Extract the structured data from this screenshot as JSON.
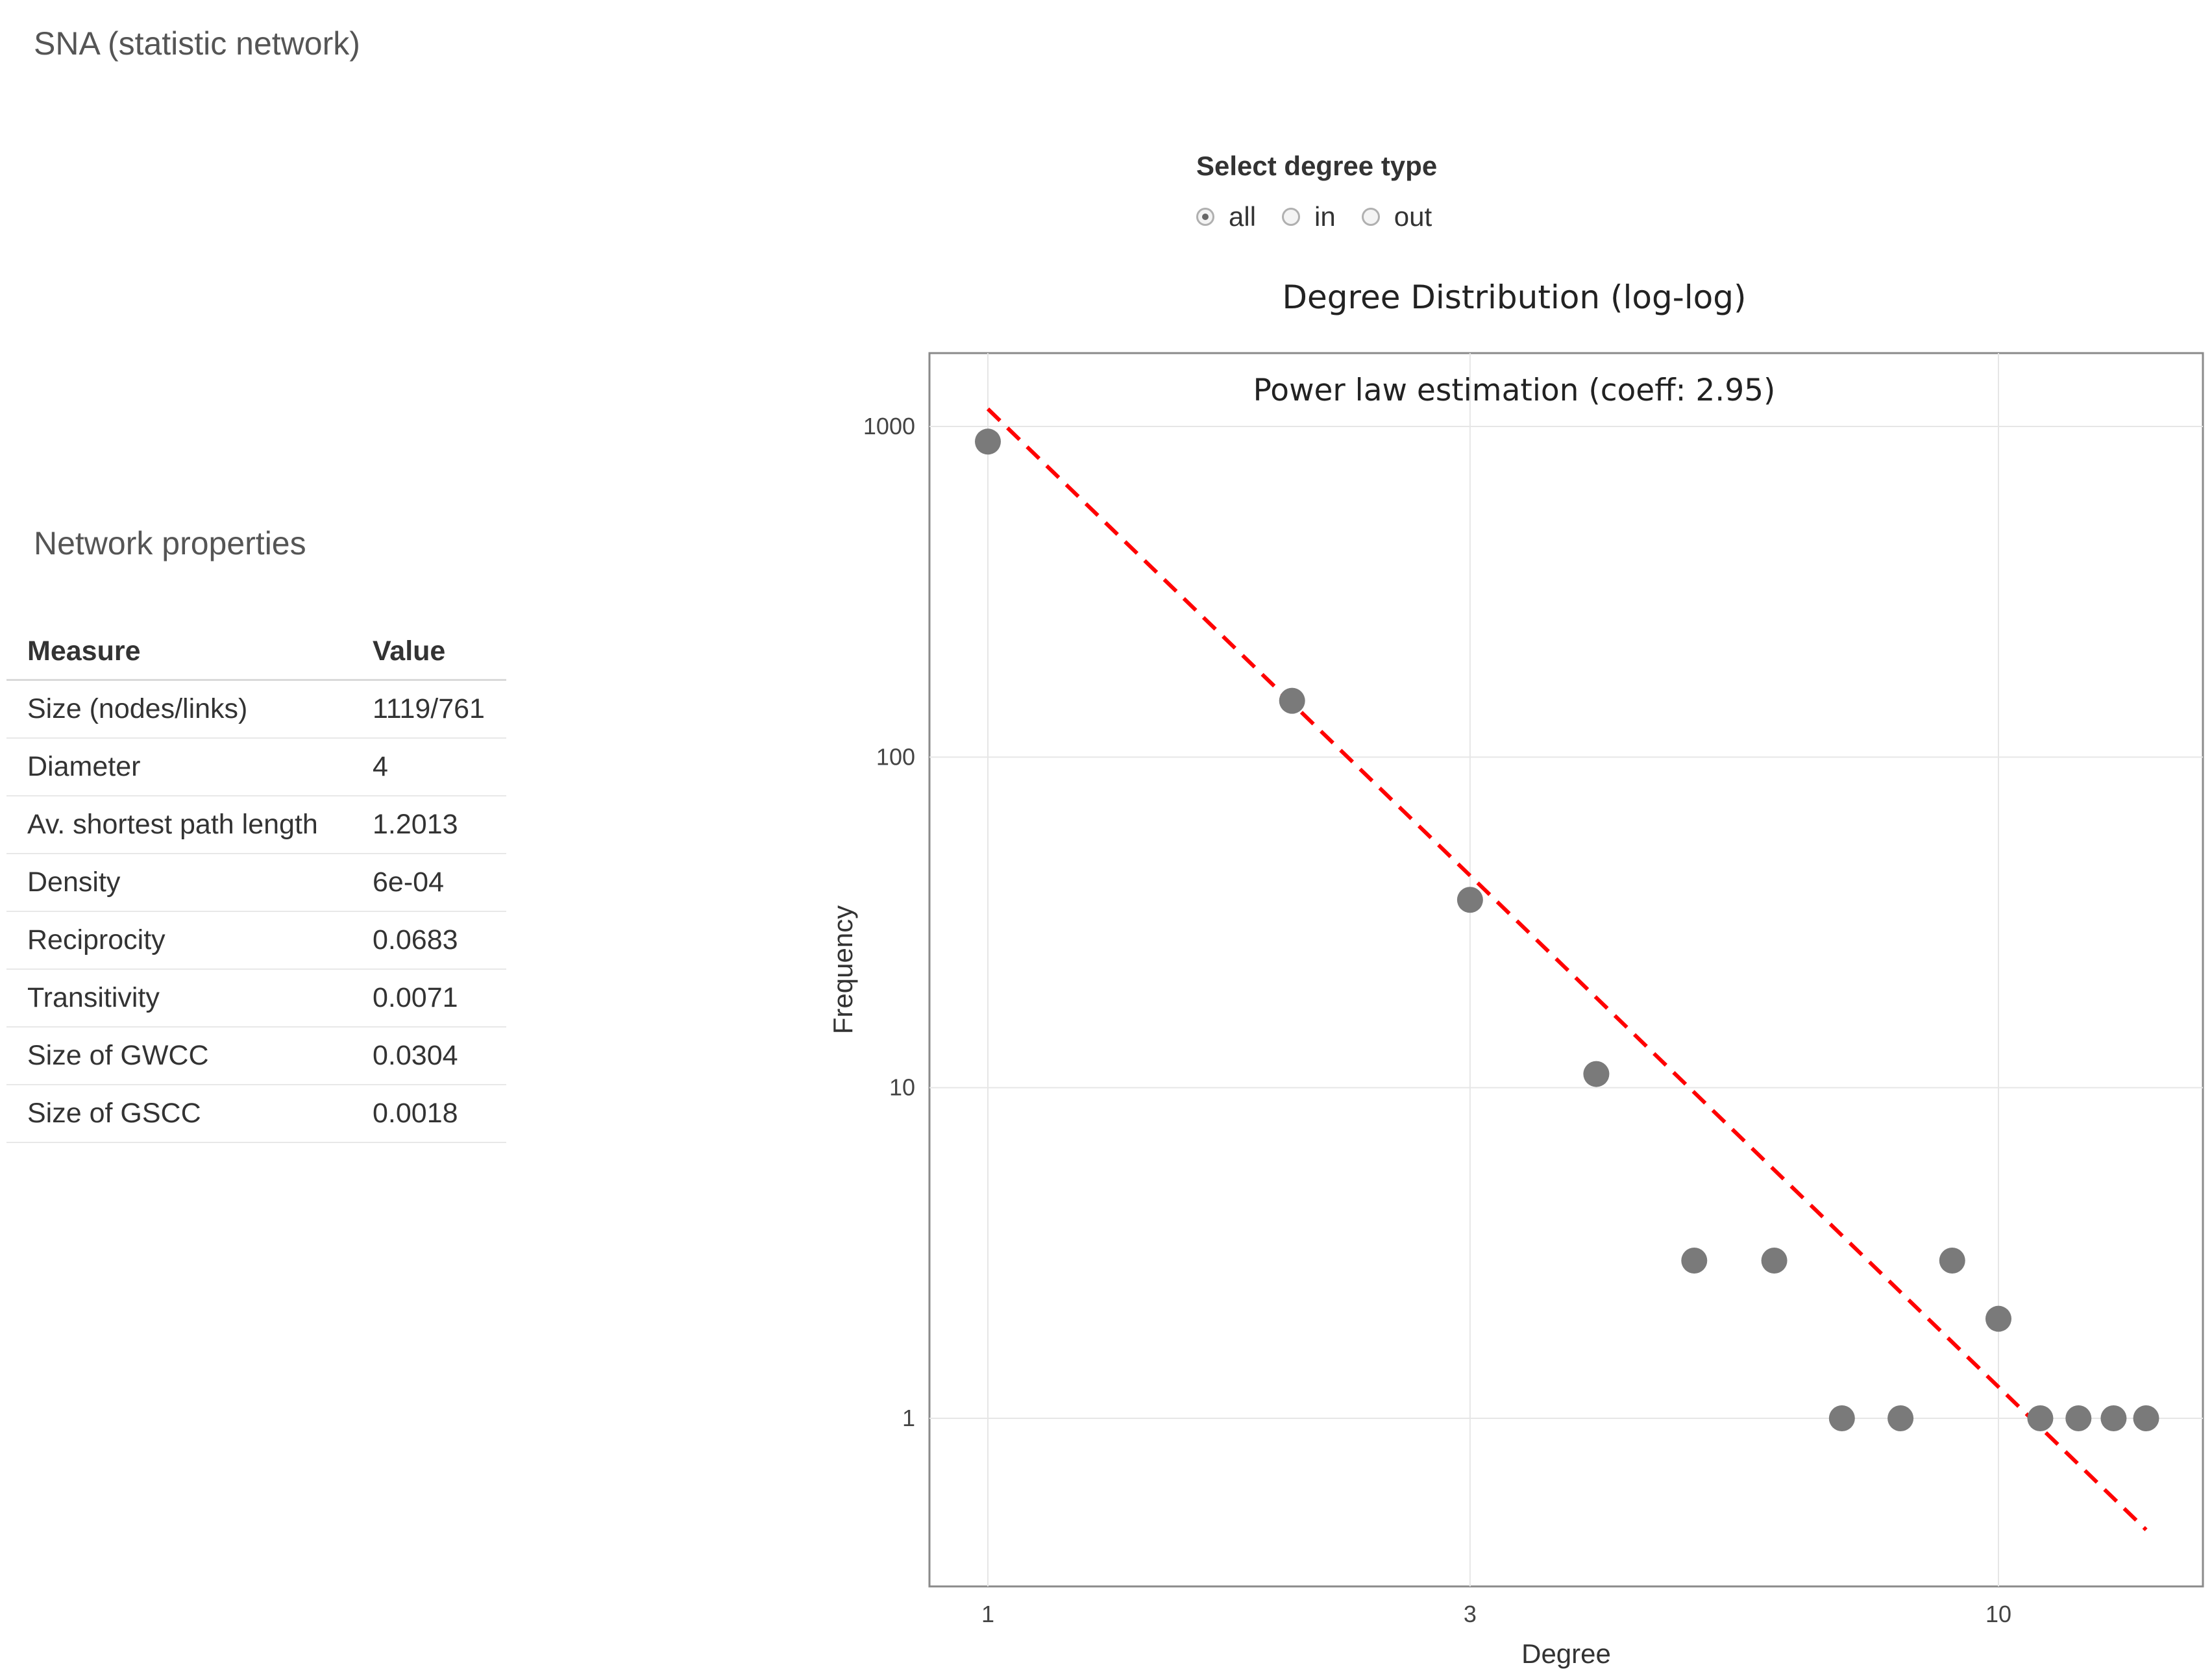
{
  "page": {
    "title": "SNA (statistic network)"
  },
  "properties": {
    "section_title": "Network properties",
    "columns": [
      "Measure",
      "Value"
    ],
    "rows": [
      {
        "measure": "Size (nodes/links)",
        "value": "1119/761"
      },
      {
        "measure": "Diameter",
        "value": "4"
      },
      {
        "measure": "Av. shortest path length",
        "value": "1.2013"
      },
      {
        "measure": "Density",
        "value": "6e-04"
      },
      {
        "measure": "Reciprocity",
        "value": "0.0683"
      },
      {
        "measure": "Transitivity",
        "value": "0.0071"
      },
      {
        "measure": "Size of GWCC",
        "value": "0.0304"
      },
      {
        "measure": "Size of GSCC",
        "value": "0.0018"
      }
    ]
  },
  "degree_selector": {
    "label": "Select degree type",
    "options": [
      {
        "label": "all",
        "selected": true
      },
      {
        "label": "in",
        "selected": false
      },
      {
        "label": "out",
        "selected": false
      }
    ]
  },
  "chart_data": {
    "type": "scatter",
    "title": "Degree Distribution (log-log)",
    "annotation": "Power law estimation (coeff: 2.95)",
    "xlabel": "Degree",
    "ylabel": "Frequency",
    "x_scale": "log",
    "y_scale": "log",
    "xlim": [
      0.9,
      16
    ],
    "ylim": [
      0.32,
      1700
    ],
    "x_ticks": [
      1,
      3,
      10
    ],
    "y_ticks": [
      1,
      10,
      100,
      1000
    ],
    "grid": true,
    "series": [
      {
        "points": [
          {
            "x": 1,
            "y": 900
          },
          {
            "x": 2,
            "y": 148
          },
          {
            "x": 3,
            "y": 37
          },
          {
            "x": 4,
            "y": 11
          },
          {
            "x": 5,
            "y": 3
          },
          {
            "x": 6,
            "y": 3
          },
          {
            "x": 7,
            "y": 1
          },
          {
            "x": 8,
            "y": 1
          },
          {
            "x": 9,
            "y": 3
          },
          {
            "x": 10,
            "y": 2
          },
          {
            "x": 11,
            "y": 1
          },
          {
            "x": 12,
            "y": 1
          },
          {
            "x": 13,
            "y": 1
          },
          {
            "x": 14,
            "y": 1
          }
        ],
        "color": "#7a7a7a"
      }
    ],
    "fit_line": {
      "style": "dashed",
      "color": "#ff0000",
      "coeff": 2.95,
      "points": [
        {
          "x": 1,
          "y": 1130
        },
        {
          "x": 14,
          "y": 0.46
        }
      ]
    }
  }
}
